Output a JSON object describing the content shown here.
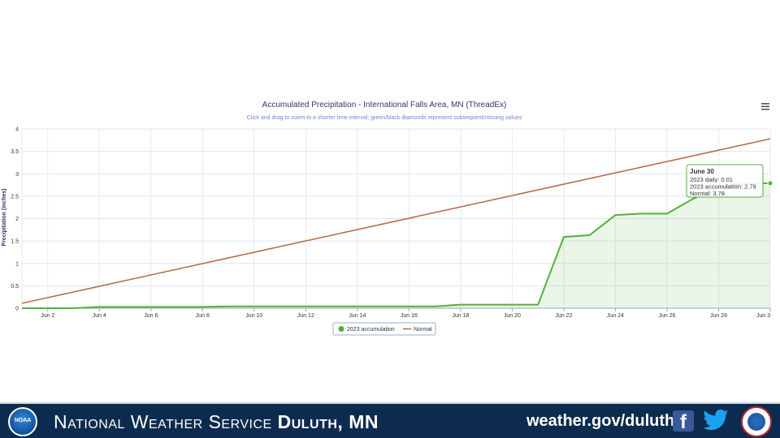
{
  "chart_data": {
    "type": "line",
    "title": "Accumulated Precipitation - International Falls Area, MN (ThreadEx)",
    "subtitle": "Click and drag to zoom to a shorter time interval; green/black diamonds represent subsequent/missing values",
    "ylabel": "Precipitation (inches)",
    "xlabel": "",
    "ylim": [
      0,
      4
    ],
    "xlim": [
      1,
      30
    ],
    "y_ticks": [
      "0",
      "0.5",
      "1",
      "1.5",
      "2",
      "2.5",
      "3",
      "3.5",
      "4"
    ],
    "x_ticks": [
      {
        "day": 2,
        "label": "Jun 2"
      },
      {
        "day": 4,
        "label": "Jun 4"
      },
      {
        "day": 6,
        "label": "Jun 6"
      },
      {
        "day": 8,
        "label": "Jun 8"
      },
      {
        "day": 10,
        "label": "Jun 10"
      },
      {
        "day": 12,
        "label": "Jun 12"
      },
      {
        "day": 14,
        "label": "Jun 14"
      },
      {
        "day": 16,
        "label": "Jun 16"
      },
      {
        "day": 18,
        "label": "Jun 18"
      },
      {
        "day": 20,
        "label": "Jun 20"
      },
      {
        "day": 22,
        "label": "Jun 22"
      },
      {
        "day": 24,
        "label": "Jun 24"
      },
      {
        "day": 26,
        "label": "Jun 26"
      },
      {
        "day": 28,
        "label": "Jun 28"
      },
      {
        "day": 30,
        "label": "Jun 3"
      }
    ],
    "grid": true,
    "legend_position": "bottom-center",
    "series": [
      {
        "name": "2023 accumulation",
        "color": "#55b03a",
        "fill": true,
        "x": [
          1,
          2,
          3,
          4,
          5,
          6,
          7,
          8,
          9,
          10,
          11,
          12,
          13,
          14,
          15,
          16,
          17,
          18,
          19,
          20,
          21,
          22,
          23,
          24,
          25,
          26,
          27,
          28,
          29,
          30
        ],
        "y": [
          0,
          0,
          0,
          0.03,
          0.03,
          0.03,
          0.03,
          0.03,
          0.04,
          0.04,
          0.04,
          0.04,
          0.04,
          0.04,
          0.04,
          0.04,
          0.04,
          0.08,
          0.08,
          0.08,
          0.08,
          1.59,
          1.63,
          2.08,
          2.11,
          2.11,
          2.44,
          2.7,
          2.78,
          2.79
        ]
      },
      {
        "name": "Normal",
        "color": "#b5683f",
        "fill": false,
        "x": [
          1,
          30
        ],
        "y": [
          0.11,
          3.78
        ]
      }
    ],
    "tooltip": {
      "title": "June 30",
      "lines": [
        "2023 daily: 0.01",
        "2023 accumulation: 2.79",
        "Normal: 3.78"
      ]
    }
  },
  "footer": {
    "logo_left": "NOAA",
    "title_regular": "National Weather Service ",
    "title_bold": "Duluth, MN",
    "website": "weather.gov/duluth",
    "facebook_glyph": "f"
  },
  "icons": {
    "menu": "hamburger-menu-icon",
    "facebook": "facebook-icon",
    "twitter": "twitter-icon"
  }
}
